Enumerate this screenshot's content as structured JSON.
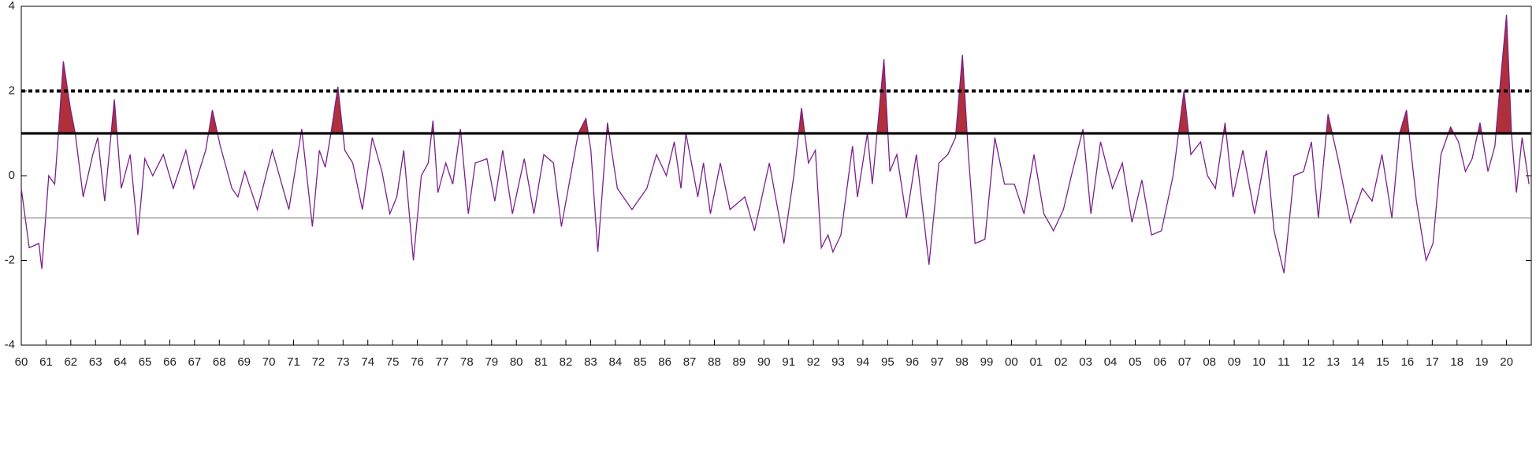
{
  "chart_data": {
    "type": "line",
    "xlim": [
      1960,
      2021
    ],
    "ylim": [
      -4,
      4
    ],
    "yticks": [
      -4,
      -2,
      0,
      2,
      4
    ],
    "xticks": [
      {
        "value": 1960,
        "label": "60"
      },
      {
        "value": 1961,
        "label": "61"
      },
      {
        "value": 1962,
        "label": "62"
      },
      {
        "value": 1963,
        "label": "63"
      },
      {
        "value": 1964,
        "label": "64"
      },
      {
        "value": 1965,
        "label": "65"
      },
      {
        "value": 1966,
        "label": "66"
      },
      {
        "value": 1967,
        "label": "67"
      },
      {
        "value": 1968,
        "label": "68"
      },
      {
        "value": 1969,
        "label": "69"
      },
      {
        "value": 1970,
        "label": "70"
      },
      {
        "value": 1971,
        "label": "71"
      },
      {
        "value": 1972,
        "label": "72"
      },
      {
        "value": 1973,
        "label": "73"
      },
      {
        "value": 1974,
        "label": "74"
      },
      {
        "value": 1975,
        "label": "75"
      },
      {
        "value": 1976,
        "label": "76"
      },
      {
        "value": 1977,
        "label": "77"
      },
      {
        "value": 1978,
        "label": "78"
      },
      {
        "value": 1979,
        "label": "79"
      },
      {
        "value": 1980,
        "label": "80"
      },
      {
        "value": 1981,
        "label": "81"
      },
      {
        "value": 1982,
        "label": "82"
      },
      {
        "value": 1983,
        "label": "83"
      },
      {
        "value": 1984,
        "label": "84"
      },
      {
        "value": 1985,
        "label": "85"
      },
      {
        "value": 1986,
        "label": "86"
      },
      {
        "value": 1987,
        "label": "87"
      },
      {
        "value": 1988,
        "label": "88"
      },
      {
        "value": 1989,
        "label": "89"
      },
      {
        "value": 1990,
        "label": "90"
      },
      {
        "value": 1991,
        "label": "91"
      },
      {
        "value": 1992,
        "label": "92"
      },
      {
        "value": 1993,
        "label": "93"
      },
      {
        "value": 1994,
        "label": "94"
      },
      {
        "value": 1995,
        "label": "95"
      },
      {
        "value": 1996,
        "label": "96"
      },
      {
        "value": 1997,
        "label": "97"
      },
      {
        "value": 1998,
        "label": "98"
      },
      {
        "value": 1999,
        "label": "99"
      },
      {
        "value": 2000,
        "label": "00"
      },
      {
        "value": 2001,
        "label": "01"
      },
      {
        "value": 2002,
        "label": "02"
      },
      {
        "value": 2003,
        "label": "03"
      },
      {
        "value": 2004,
        "label": "04"
      },
      {
        "value": 2005,
        "label": "05"
      },
      {
        "value": 2006,
        "label": "06"
      },
      {
        "value": 2007,
        "label": "07"
      },
      {
        "value": 2008,
        "label": "08"
      },
      {
        "value": 2009,
        "label": "09"
      },
      {
        "value": 2010,
        "label": "10"
      },
      {
        "value": 2011,
        "label": "11"
      },
      {
        "value": 2012,
        "label": "12"
      },
      {
        "value": 2013,
        "label": "13"
      },
      {
        "value": 2014,
        "label": "14"
      },
      {
        "value": 2015,
        "label": "15"
      },
      {
        "value": 2016,
        "label": "16"
      },
      {
        "value": 2017,
        "label": "17"
      },
      {
        "value": 2018,
        "label": "18"
      },
      {
        "value": 2019,
        "label": "19"
      },
      {
        "value": 2020,
        "label": "20"
      }
    ],
    "reference_lines": [
      {
        "value": 2,
        "style": "dotted",
        "color": "#000000"
      },
      {
        "value": 1,
        "style": "solid",
        "color": "#000000"
      },
      {
        "value": -1,
        "style": "thin",
        "color": "#777777"
      }
    ],
    "fill_above": 1,
    "fill_color": "#b0303a",
    "series": [
      {
        "color": "#7b1f8c",
        "x": [
          1960.0,
          1960.32,
          1960.71,
          1960.83,
          1961.11,
          1961.35,
          1961.5,
          1961.7,
          1961.98,
          1962.18,
          1962.5,
          1962.89,
          1963.09,
          1963.37,
          1963.76,
          1964.04,
          1964.4,
          1964.71,
          1964.99,
          1965.31,
          1965.74,
          1966.14,
          1966.65,
          1966.97,
          1967.45,
          1967.72,
          1968.04,
          1968.51,
          1968.75,
          1969.03,
          1969.54,
          1970.14,
          1970.81,
          1971.33,
          1971.76,
          1972.04,
          1972.28,
          1972.51,
          1972.79,
          1973.07,
          1973.39,
          1973.78,
          1974.18,
          1974.57,
          1974.89,
          1975.17,
          1975.45,
          1975.84,
          1976.16,
          1976.44,
          1976.63,
          1976.83,
          1977.15,
          1977.43,
          1977.74,
          1978.06,
          1978.34,
          1978.81,
          1979.13,
          1979.45,
          1979.84,
          1980.32,
          1980.71,
          1981.11,
          1981.5,
          1981.82,
          1982.5,
          1982.81,
          1983.01,
          1983.29,
          1983.68,
          1984.08,
          1984.67,
          1985.27,
          1985.66,
          1986.06,
          1986.38,
          1986.65,
          1986.85,
          1987.33,
          1987.56,
          1987.84,
          1988.24,
          1988.63,
          1989.23,
          1989.62,
          1990.22,
          1990.81,
          1991.21,
          1991.52,
          1991.8,
          1992.08,
          1992.32,
          1992.59,
          1992.79,
          1993.11,
          1993.31,
          1993.58,
          1993.78,
          1994.18,
          1994.38,
          1994.85,
          1995.09,
          1995.37,
          1995.76,
          1996.16,
          1996.67,
          1997.07,
          1997.43,
          1997.74,
          1998.02,
          1998.26,
          1998.53,
          1998.93,
          1999.33,
          1999.72,
          2000.12,
          2000.51,
          2000.91,
          2001.31,
          2001.7,
          2002.1,
          2002.42,
          2002.89,
          2003.21,
          2003.6,
          2004.08,
          2004.48,
          2004.87,
          2005.27,
          2005.66,
          2006.06,
          2006.53,
          2006.97,
          2007.25,
          2007.64,
          2007.92,
          2008.24,
          2008.63,
          2008.95,
          2009.35,
          2009.82,
          2010.3,
          2010.61,
          2011.01,
          2011.41,
          2011.8,
          2012.12,
          2012.4,
          2012.79,
          2013.19,
          2013.7,
          2014.18,
          2014.57,
          2014.97,
          2015.37,
          2015.68,
          2015.96,
          2016.36,
          2016.75,
          2017.03,
          2017.35,
          2017.74,
          2018.06,
          2018.34,
          2018.61,
          2018.93,
          2019.25,
          2019.53,
          2019.72,
          2020.0,
          2020.2,
          2020.4,
          2020.63,
          2020.91
        ],
        "values": [
          -0.3,
          -1.7,
          -1.6,
          -2.2,
          0.0,
          -0.2,
          1.0,
          2.7,
          1.6,
          1.0,
          -0.5,
          0.5,
          0.9,
          -0.6,
          1.8,
          -0.3,
          0.5,
          -1.4,
          0.4,
          0.0,
          0.5,
          -0.3,
          0.6,
          -0.3,
          0.6,
          1.55,
          0.7,
          -0.3,
          -0.5,
          0.1,
          -0.8,
          0.6,
          -0.8,
          1.1,
          -1.2,
          0.6,
          0.2,
          1.0,
          2.1,
          0.6,
          0.3,
          -0.8,
          0.9,
          0.1,
          -0.9,
          -0.5,
          0.6,
          -2.0,
          0.0,
          0.3,
          1.3,
          -0.4,
          0.3,
          -0.2,
          1.1,
          -0.9,
          0.3,
          0.4,
          -0.6,
          0.6,
          -0.9,
          0.4,
          -0.9,
          0.5,
          0.3,
          -1.2,
          1.0,
          1.35,
          0.6,
          -1.8,
          1.25,
          -0.3,
          -0.8,
          -0.3,
          0.5,
          0.0,
          0.8,
          -0.3,
          1.0,
          -0.5,
          0.3,
          -0.9,
          0.3,
          -0.8,
          -0.5,
          -1.3,
          0.3,
          -1.6,
          0.0,
          1.6,
          0.3,
          0.6,
          -1.7,
          -1.4,
          -1.8,
          -1.4,
          -0.5,
          0.7,
          -0.5,
          1.0,
          -0.2,
          2.75,
          0.1,
          0.5,
          -1.0,
          0.5,
          -2.1,
          0.3,
          0.5,
          0.9,
          2.85,
          0.5,
          -1.6,
          -1.5,
          0.9,
          -0.2,
          -0.2,
          -0.9,
          0.5,
          -0.9,
          -1.3,
          -0.8,
          0.0,
          1.1,
          -0.9,
          0.8,
          -0.3,
          0.3,
          -1.1,
          -0.1,
          -1.4,
          -1.3,
          0.0,
          2.0,
          0.5,
          0.8,
          0.0,
          -0.3,
          1.25,
          -0.5,
          0.6,
          -0.9,
          0.6,
          -1.3,
          -2.3,
          0.0,
          0.1,
          0.8,
          -1.0,
          1.45,
          0.4,
          -1.1,
          -0.3,
          -0.6,
          0.5,
          -1.0,
          1.0,
          1.55,
          -0.6,
          -2.0,
          -1.6,
          0.5,
          1.15,
          0.8,
          0.1,
          0.4,
          1.25,
          0.1,
          0.7,
          2.0,
          3.8,
          1.0,
          -0.4,
          0.9,
          -0.2
        ]
      }
    ]
  }
}
